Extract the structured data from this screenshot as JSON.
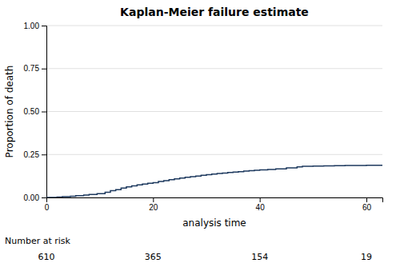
{
  "chart_data": {
    "type": "step",
    "title": "Kaplan-Meier failure estimate",
    "x_label": "analysis time",
    "y_label": "Proportion of death",
    "x": [
      0.0,
      1.0,
      2.0,
      3.0,
      4.5,
      5.5,
      7.0,
      8.0,
      9.5,
      11.0,
      12.0,
      13.0,
      14.0,
      15.0,
      16.0,
      17.0,
      18.0,
      19.0,
      20.0,
      21.0,
      22.0,
      23.0,
      24.0,
      25.0,
      26.0,
      27.0,
      28.0,
      29.0,
      30.0,
      31.0,
      32.0,
      33.0,
      34.0,
      35.0,
      36.0,
      37.0,
      38.0,
      39.0,
      40.0,
      41.5,
      43.0,
      45.0,
      47.0,
      48.0,
      50.0,
      52.0,
      54.0,
      56.0,
      58.0,
      60.0,
      62.0,
      63.0
    ],
    "values": [
      0.0,
      0.0,
      0.002,
      0.005,
      0.007,
      0.01,
      0.014,
      0.018,
      0.022,
      0.03,
      0.04,
      0.045,
      0.055,
      0.062,
      0.068,
      0.073,
      0.078,
      0.082,
      0.086,
      0.093,
      0.098,
      0.103,
      0.108,
      0.113,
      0.117,
      0.121,
      0.125,
      0.129,
      0.133,
      0.136,
      0.139,
      0.142,
      0.145,
      0.148,
      0.15,
      0.153,
      0.156,
      0.158,
      0.161,
      0.163,
      0.166,
      0.172,
      0.178,
      0.181,
      0.183,
      0.184,
      0.185,
      0.186,
      0.186,
      0.187,
      0.187,
      0.187
    ],
    "color": "#1e3a5f",
    "xlim": [
      0,
      63
    ],
    "xticks": [
      0,
      20,
      40,
      60
    ],
    "ylim": [
      0.0,
      1.0
    ],
    "yticks": [
      {
        "value": 0.0,
        "label": "0.00"
      },
      0.25,
      {
        "value": 0.5,
        "label": "0.50"
      },
      0.75,
      {
        "value": 1.0,
        "label": "1.00"
      }
    ],
    "grid": "y",
    "risk_table": {
      "label": "Number at risk",
      "x": [
        0,
        20,
        40,
        60
      ],
      "values": [
        610,
        365,
        154,
        19
      ]
    }
  }
}
